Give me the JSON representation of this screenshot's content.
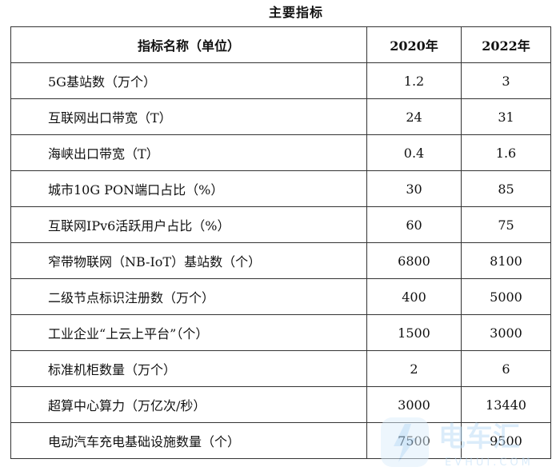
{
  "caption": "主要指标",
  "table": {
    "headers": [
      "指标名称（单位）",
      "2020年",
      "2022年"
    ],
    "rows": [
      {
        "name": "5G基站数（万个）",
        "y2020": "1.2",
        "y2022": "3"
      },
      {
        "name": "互联网出口带宽（T）",
        "y2020": "24",
        "y2022": "31"
      },
      {
        "name": "海峡出口带宽（T）",
        "y2020": "0.4",
        "y2022": "1.6"
      },
      {
        "name": "城市10G PON端口占比（%）",
        "y2020": "30",
        "y2022": "85"
      },
      {
        "name": "互联网IPv6活跃用户占比（%）",
        "y2020": "60",
        "y2022": "75"
      },
      {
        "name": "窄带物联网（NB-IoT）基站数（个）",
        "y2020": "6800",
        "y2022": "8100"
      },
      {
        "name": "二级节点标识注册数（万个）",
        "y2020": "400",
        "y2022": "5000"
      },
      {
        "name": "工业企业“上云上平台”（个）",
        "y2020": "1500",
        "y2022": "3000"
      },
      {
        "name": "标准机柜数量（万个）",
        "y2020": "2",
        "y2022": "6"
      },
      {
        "name": "超算中心算力（万亿次/秒）",
        "y2020": "3000",
        "y2022": "13440"
      },
      {
        "name": "电动汽车充电基础设施数量（个）",
        "y2020": "7500",
        "y2022": "9500"
      }
    ]
  },
  "watermark": {
    "brand": "电车汇",
    "latin": "EVHUI.COM",
    "color": "#1e7fd6"
  }
}
